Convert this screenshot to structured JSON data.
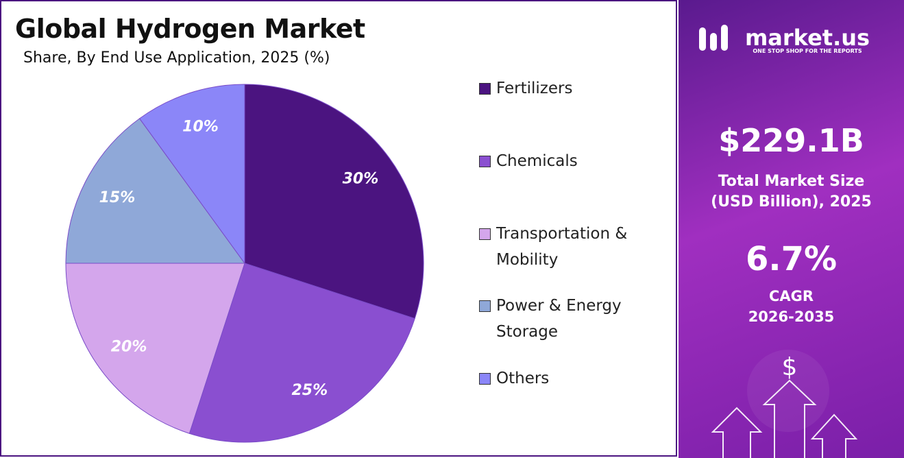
{
  "chart_data": {
    "type": "pie",
    "title": "Global Hydrogen Market",
    "subtitle": "Share, By End Use Application, 2025 (%)",
    "categories": [
      "Fertilizers",
      "Chemicals",
      "Transportation & Mobility",
      "Power & Energy Storage",
      "Others"
    ],
    "values": [
      30,
      25,
      20,
      15,
      10
    ],
    "value_labels": [
      "30%",
      "25%",
      "20%",
      "15%",
      "10%"
    ],
    "colors": [
      "#4b1480",
      "#8a4fd0",
      "#d4a6ec",
      "#8fa8d8",
      "#8b86f8"
    ]
  },
  "side_panel": {
    "brand": "market.us",
    "tagline": "ONE STOP SHOP FOR THE REPORTS",
    "market_size": "$229.1B",
    "market_size_label": "Total Market Size (USD Billion), 2025",
    "cagr": "6.7%",
    "cagr_label": "CAGR",
    "cagr_period": "2026-2035"
  }
}
